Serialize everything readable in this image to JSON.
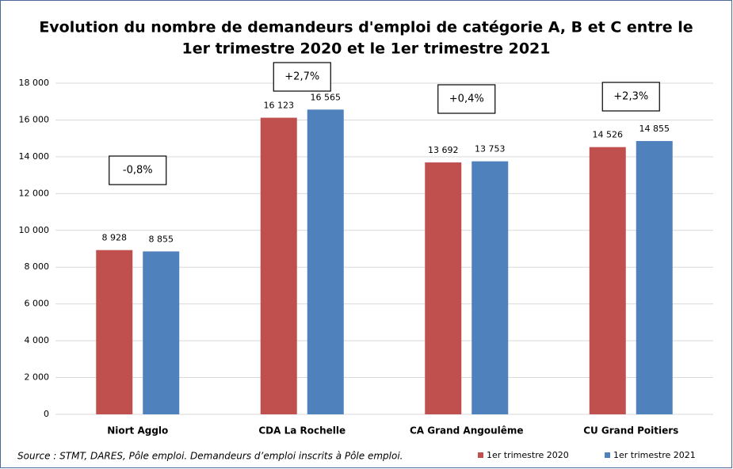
{
  "chart_data": {
    "type": "bar",
    "title": [
      "Evolution du nombre de demandeurs d'emploi de catégorie A, B et C entre le",
      "1er trimestre 2020 et le 1er trimestre 2021"
    ],
    "categories": [
      "Niort Agglo",
      "CDA La Rochelle",
      "CA Grand Angoulême",
      "CU Grand Poitiers"
    ],
    "series": [
      {
        "name": "1er trimestre 2020",
        "color": "#c0504d",
        "values": [
          8928,
          16123,
          13692,
          14526
        ],
        "value_labels": [
          "8 928",
          "16 123",
          "13 692",
          "14 526"
        ]
      },
      {
        "name": "1er trimestre 2021",
        "color": "#4f81bd",
        "values": [
          8855,
          16565,
          13753,
          14855
        ],
        "value_labels": [
          "8 855",
          "16 565",
          "13 753",
          "14 855"
        ]
      }
    ],
    "annotations": [
      "-0,8%",
      "+2,7%",
      "+0,4%",
      "+2,3%"
    ],
    "ylim": [
      0,
      18000
    ],
    "yticks": [
      0,
      {
        "value": 2000,
        "label": "2 000"
      },
      {
        "value": 4000,
        "label": "4 000"
      },
      {
        "value": 6000,
        "label": "6 000"
      },
      {
        "value": 8000,
        "label": "8 000"
      },
      {
        "value": 10000,
        "label": "10 000"
      },
      {
        "value": 12000,
        "label": "12 000"
      },
      {
        "value": 14000,
        "label": "14 000"
      },
      {
        "value": 16000,
        "label": "16 000"
      },
      {
        "value": 18000,
        "label": "18 000"
      }
    ],
    "grid": true,
    "source": "Source : STMT, DARES, Pôle emploi. Demandeurs d’emploi inscrits à Pôle emploi.",
    "legend": "bottom-right"
  }
}
